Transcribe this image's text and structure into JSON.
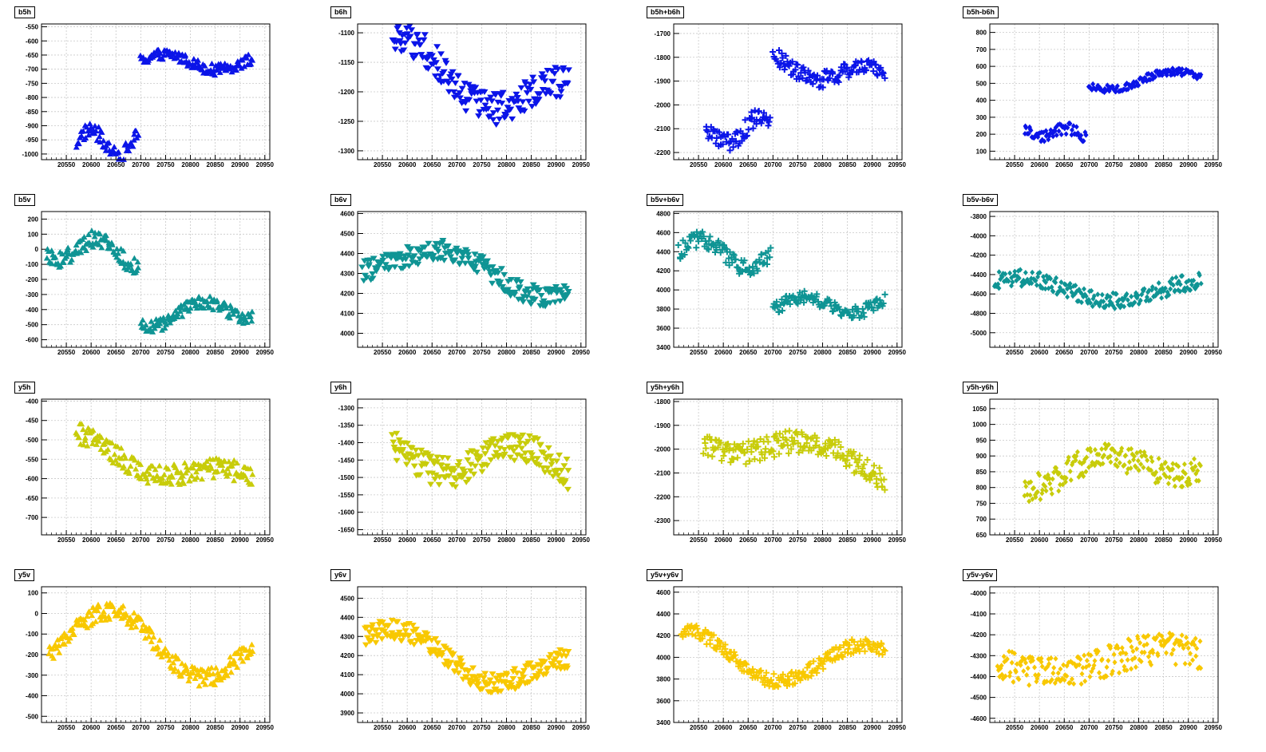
{
  "colors": {
    "blue": "#0b14e8",
    "teal": "#0f9494",
    "olive": "#c8cc0a",
    "amber": "#f8c800"
  },
  "x_ticks": [
    "20550",
    "20600",
    "20650",
    "20700",
    "20750",
    "20800",
    "20850",
    "20900",
    "20950"
  ],
  "chart_data": [
    {
      "title": "b5h",
      "type": "scatter",
      "marker": "triangle-up",
      "color": "blue",
      "xlim": [
        20500,
        20960
      ],
      "ylim": [
        -1020,
        -540
      ],
      "y_ticks": [
        -550,
        -600,
        -650,
        -700,
        -750,
        -800,
        -850,
        -900,
        -950,
        -1000
      ],
      "segments": [
        {
          "x0": 20570,
          "x1": 20695,
          "ymid": -960,
          "amp": 45,
          "noise": 55,
          "trend": 0
        },
        {
          "x0": 20700,
          "x1": 20925,
          "ymid": -675,
          "amp": 25,
          "noise": 40,
          "trend": -10
        }
      ]
    },
    {
      "title": "b6h",
      "type": "scatter",
      "marker": "triangle-down",
      "color": "blue",
      "xlim": [
        20500,
        20960
      ],
      "ylim": [
        -1315,
        -1085
      ],
      "y_ticks": [
        -1100,
        -1150,
        -1200,
        -1250,
        -1300
      ],
      "segments": [
        {
          "x0": 20570,
          "x1": 20925,
          "ymid": -1185,
          "amp": 40,
          "noise": 55,
          "trend": -80
        }
      ]
    },
    {
      "title": "b5h+b6h",
      "type": "scatter",
      "marker": "plus",
      "color": "blue",
      "xlim": [
        20500,
        20960
      ],
      "ylim": [
        -2230,
        -1660
      ],
      "y_ticks": [
        -1700,
        -1800,
        -1900,
        -2000,
        -2100,
        -2200
      ],
      "segments": [
        {
          "x0": 20565,
          "x1": 20695,
          "ymid": -2110,
          "amp": 40,
          "noise": 80,
          "trend": 80
        },
        {
          "x0": 20700,
          "x1": 20925,
          "ymid": -1860,
          "amp": 40,
          "noise": 70,
          "trend": -60
        }
      ]
    },
    {
      "title": "b5h-b6h",
      "type": "scatter",
      "marker": "diamond",
      "color": "blue",
      "xlim": [
        20500,
        20960
      ],
      "ylim": [
        50,
        850
      ],
      "y_ticks": [
        100,
        200,
        300,
        400,
        500,
        600,
        700,
        800
      ],
      "segments": [
        {
          "x0": 20570,
          "x1": 20695,
          "ymid": 210,
          "amp": 30,
          "noise": 70,
          "trend": -40
        },
        {
          "x0": 20700,
          "x1": 20925,
          "ymid": 520,
          "amp": 30,
          "noise": 45,
          "trend": 80
        }
      ]
    },
    {
      "title": "b5v",
      "type": "scatter",
      "marker": "triangle-up",
      "color": "teal",
      "xlim": [
        20500,
        20960
      ],
      "ylim": [
        -650,
        250
      ],
      "y_ticks": [
        200,
        100,
        0,
        -100,
        -200,
        -300,
        -400,
        -500,
        -600
      ],
      "segments": [
        {
          "x0": 20510,
          "x1": 20695,
          "ymid": -10,
          "amp": 80,
          "noise": 120,
          "trend": -60
        },
        {
          "x0": 20700,
          "x1": 20925,
          "ymid": -420,
          "amp": 70,
          "noise": 90,
          "trend": 60
        }
      ]
    },
    {
      "title": "b6v",
      "type": "scatter",
      "marker": "triangle-down",
      "color": "teal",
      "xlim": [
        20500,
        20960
      ],
      "ylim": [
        3930,
        4610
      ],
      "y_ticks": [
        4000,
        4100,
        4200,
        4300,
        4400,
        4500,
        4600
      ],
      "segments": [
        {
          "x0": 20510,
          "x1": 20925,
          "ymid": 4320,
          "amp": 80,
          "noise": 110,
          "trend": -150
        }
      ]
    },
    {
      "title": "b5v+b6v",
      "type": "scatter",
      "marker": "plus",
      "color": "teal",
      "xlim": [
        20500,
        20960
      ],
      "ylim": [
        3400,
        4820
      ],
      "y_ticks": [
        3400,
        3600,
        3800,
        4000,
        4200,
        4400,
        4600,
        4800
      ],
      "segments": [
        {
          "x0": 20510,
          "x1": 20695,
          "ymid": 4380,
          "amp": 120,
          "noise": 180,
          "trend": -100
        },
        {
          "x0": 20700,
          "x1": 20925,
          "ymid": 3840,
          "amp": 90,
          "noise": 140,
          "trend": 40
        }
      ]
    },
    {
      "title": "b5v-b6v",
      "type": "scatter",
      "marker": "diamond",
      "color": "teal",
      "xlim": [
        20500,
        20960
      ],
      "ylim": [
        -5150,
        -3750
      ],
      "y_ticks": [
        -3800,
        -4000,
        -4200,
        -4400,
        -4600,
        -4800,
        -5000
      ],
      "segments": [
        {
          "x0": 20510,
          "x1": 20925,
          "ymid": -4560,
          "amp": 110,
          "noise": 170,
          "trend": -40
        }
      ]
    },
    {
      "title": "y5h",
      "type": "scatter",
      "marker": "triangle-up",
      "color": "olive",
      "xlim": [
        20500,
        20960
      ],
      "ylim": [
        -745,
        -395
      ],
      "y_ticks": [
        -400,
        -450,
        -500,
        -550,
        -600,
        -650,
        -700
      ],
      "segments": [
        {
          "x0": 20570,
          "x1": 20925,
          "ymid": -565,
          "amp": 30,
          "noise": 55,
          "trend": -110
        }
      ]
    },
    {
      "title": "y6h",
      "type": "scatter",
      "marker": "triangle-down",
      "color": "olive",
      "xlim": [
        20500,
        20960
      ],
      "ylim": [
        -1665,
        -1275
      ],
      "y_ticks": [
        -1300,
        -1350,
        -1400,
        -1450,
        -1500,
        -1550,
        -1600,
        -1650
      ],
      "segments": [
        {
          "x0": 20570,
          "x1": 20925,
          "ymid": -1450,
          "amp": 50,
          "noise": 90,
          "trend": -60
        }
      ]
    },
    {
      "title": "y5h+y6h",
      "type": "scatter",
      "marker": "plus",
      "color": "olive",
      "xlim": [
        20500,
        20960
      ],
      "ylim": [
        -2360,
        -1790
      ],
      "y_ticks": [
        -1800,
        -1900,
        -2000,
        -2100,
        -2200,
        -2300
      ],
      "segments": [
        {
          "x0": 20560,
          "x1": 20925,
          "ymid": -2010,
          "amp": 50,
          "noise": 100,
          "trend": -130
        }
      ]
    },
    {
      "title": "y5h-y6h",
      "type": "scatter",
      "marker": "diamond",
      "color": "olive",
      "xlim": [
        20500,
        20960
      ],
      "ylim": [
        650,
        1080
      ],
      "y_ticks": [
        650,
        700,
        750,
        800,
        850,
        900,
        950,
        1000,
        1050
      ],
      "segments": [
        {
          "x0": 20570,
          "x1": 20925,
          "ymid": 860,
          "amp": 40,
          "noise": 90,
          "trend": 60
        }
      ]
    },
    {
      "title": "y5v",
      "type": "scatter",
      "marker": "triangle-up",
      "color": "amber",
      "xlim": [
        20500,
        20960
      ],
      "ylim": [
        -530,
        130
      ],
      "y_ticks": [
        100,
        0,
        -100,
        -200,
        -300,
        -400,
        -500
      ],
      "segments": [
        {
          "x0": 20515,
          "x1": 20925,
          "ymid": -150,
          "amp": 150,
          "noise": 90,
          "trend": -50
        }
      ]
    },
    {
      "title": "y6v",
      "type": "scatter",
      "marker": "triangle-down",
      "color": "amber",
      "xlim": [
        20500,
        20960
      ],
      "ylim": [
        3850,
        4560
      ],
      "y_ticks": [
        3900,
        4000,
        4100,
        4200,
        4300,
        4400,
        4500
      ],
      "segments": [
        {
          "x0": 20515,
          "x1": 20925,
          "ymid": 4180,
          "amp": 100,
          "noise": 110,
          "trend": -160
        }
      ]
    },
    {
      "title": "y5v+y6v",
      "type": "scatter",
      "marker": "plus",
      "color": "amber",
      "xlim": [
        20500,
        20960
      ],
      "ylim": [
        3400,
        4650
      ],
      "y_ticks": [
        3400,
        3600,
        3800,
        4000,
        4200,
        4400,
        4600
      ],
      "segments": [
        {
          "x0": 20515,
          "x1": 20925,
          "ymid": 3980,
          "amp": 200,
          "noise": 130,
          "trend": -150
        }
      ]
    },
    {
      "title": "y5v-y6v",
      "type": "scatter",
      "marker": "diamond",
      "color": "amber",
      "xlim": [
        20500,
        20960
      ],
      "ylim": [
        -4620,
        -3970
      ],
      "y_ticks": [
        -4000,
        -4100,
        -4200,
        -4300,
        -4400,
        -4500,
        -4600
      ],
      "segments": [
        {
          "x0": 20515,
          "x1": 20925,
          "ymid": -4330,
          "amp": 40,
          "noise": 150,
          "trend": 80
        }
      ]
    }
  ]
}
